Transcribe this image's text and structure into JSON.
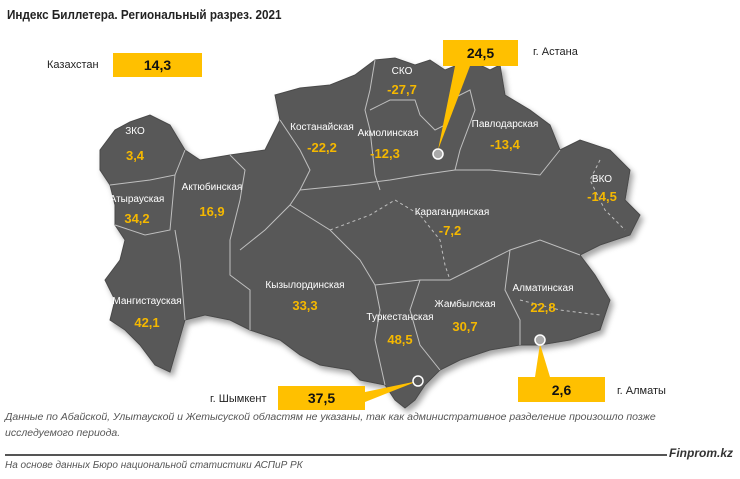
{
  "title": "Индекс Биллетера. Региональный разрез. 2021",
  "colors": {
    "map_fill": "#595959",
    "value_text": "#F5B800",
    "callout": "#FFC000",
    "border": "#BFBFBF"
  },
  "national": {
    "label": "Казахстан",
    "value": "14,3"
  },
  "cities": [
    {
      "label": "г. Астана",
      "value": "24,5"
    },
    {
      "label": "г. Шымкент",
      "value": "37,5"
    },
    {
      "label": "г. Алматы",
      "value": "2,6"
    }
  ],
  "regions": [
    {
      "name": "СКО",
      "value": "-27,7"
    },
    {
      "name": "Костанайская",
      "value": "-22,2"
    },
    {
      "name": "Акмолинская",
      "value": "-12,3"
    },
    {
      "name": "Павлодарская",
      "value": "-13,4"
    },
    {
      "name": "ЗКО",
      "value": "3,4"
    },
    {
      "name": "Атырауская",
      "value": "34,2"
    },
    {
      "name": "Актюбинская",
      "value": "16,9"
    },
    {
      "name": "ВКО",
      "value": "-14,5"
    },
    {
      "name": "Карагандинская",
      "value": "-7,2"
    },
    {
      "name": "Кызылординская",
      "value": "33,3"
    },
    {
      "name": "Жамбылская",
      "value": "30,7"
    },
    {
      "name": "Алматинская",
      "value": "22,8"
    },
    {
      "name": "Мангистауская",
      "value": "42,1"
    },
    {
      "name": "Туркестанская",
      "value": "48,5"
    }
  ],
  "footnote": "Данные по Абайской, Улытауской и Жетысуской областям не указаны, так как административное разделение произошло позже исследуемого периода.",
  "brand": "Finprom.kz",
  "source": "На основе данных Бюро национальной статистики АСПиР РК"
}
